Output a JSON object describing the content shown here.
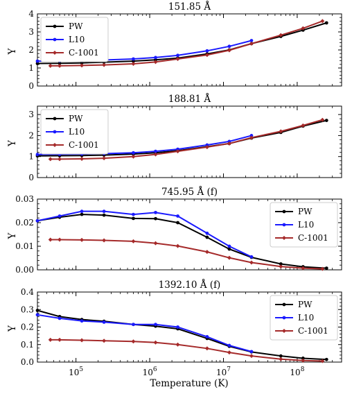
{
  "figure": {
    "xlabel": "Temperature (K)",
    "x_tick_labels": [
      "10^5",
      "10^6",
      "10^7",
      "10^8"
    ],
    "legend_labels": [
      "PW",
      "L10",
      "C-1001"
    ],
    "colors": {
      "PW": "#000000",
      "L10": "#1a1aff",
      "C-1001": "#a52a2a"
    }
  },
  "chart_data": [
    {
      "type": "line",
      "title": "151.85 Å",
      "ylabel": "Y",
      "xscale": "log",
      "xlim": [
        30000,
        400000000
      ],
      "ylim": [
        0,
        4
      ],
      "yticks": [
        0,
        1,
        2,
        3,
        4
      ],
      "ytick_labels": [
        "0",
        "1",
        "2",
        "3",
        "4"
      ],
      "legend": "top-left",
      "series": [
        {
          "name": "PW",
          "x": [
            30000,
            60000,
            120000,
            240000,
            600000,
            1200000,
            2400000,
            6000000,
            12000000,
            24000000,
            60000000,
            120000000,
            250000000
          ],
          "values": [
            1.25,
            1.26,
            1.28,
            1.32,
            1.38,
            1.45,
            1.55,
            1.78,
            2.0,
            2.35,
            2.75,
            3.1,
            3.5
          ]
        },
        {
          "name": "L10",
          "x": [
            30000,
            60000,
            120000,
            240000,
            600000,
            1200000,
            2400000,
            6000000,
            12000000,
            24000000
          ],
          "values": [
            1.38,
            1.39,
            1.41,
            1.44,
            1.5,
            1.58,
            1.7,
            1.95,
            2.2,
            2.52
          ]
        },
        {
          "name": "C-1001",
          "x": [
            45000,
            60000,
            120000,
            240000,
            600000,
            1200000,
            2400000,
            6000000,
            12000000,
            24000000,
            60000000,
            120000000,
            220000000
          ],
          "values": [
            1.12,
            1.12,
            1.14,
            1.17,
            1.23,
            1.33,
            1.5,
            1.72,
            1.98,
            2.35,
            2.82,
            3.2,
            3.6
          ]
        }
      ]
    },
    {
      "type": "line",
      "title": "188.81 Å",
      "ylabel": "Y",
      "xscale": "log",
      "xlim": [
        30000,
        400000000
      ],
      "ylim": [
        0,
        3.4
      ],
      "yticks": [
        0,
        1,
        2,
        3
      ],
      "ytick_labels": [
        "0",
        "1",
        "2",
        "3"
      ],
      "legend": "top-left",
      "series": [
        {
          "name": "PW",
          "x": [
            30000,
            60000,
            120000,
            240000,
            600000,
            1200000,
            2400000,
            6000000,
            12000000,
            24000000,
            60000000,
            120000000,
            250000000
          ],
          "values": [
            1.03,
            1.04,
            1.05,
            1.07,
            1.12,
            1.18,
            1.28,
            1.47,
            1.62,
            1.88,
            2.15,
            2.45,
            2.72
          ]
        },
        {
          "name": "L10",
          "x": [
            30000,
            60000,
            120000,
            240000,
            600000,
            1200000,
            2400000,
            6000000,
            12000000,
            24000000
          ],
          "values": [
            1.1,
            1.11,
            1.12,
            1.14,
            1.18,
            1.25,
            1.35,
            1.55,
            1.72,
            2.0
          ]
        },
        {
          "name": "C-1001",
          "x": [
            45000,
            60000,
            120000,
            240000,
            600000,
            1200000,
            2400000,
            6000000,
            12000000,
            24000000,
            60000000,
            120000000,
            220000000
          ],
          "values": [
            0.88,
            0.88,
            0.89,
            0.92,
            1.0,
            1.1,
            1.25,
            1.45,
            1.62,
            1.9,
            2.2,
            2.48,
            2.75
          ]
        }
      ]
    },
    {
      "type": "line",
      "title": "745.95 Å (f)",
      "ylabel": "Y",
      "xscale": "log",
      "xlim": [
        30000,
        400000000
      ],
      "ylim": [
        0,
        0.03
      ],
      "yticks": [
        0,
        0.01,
        0.02,
        0.03
      ],
      "ytick_labels": [
        "0.00",
        "0.01",
        "0.02",
        "0.03"
      ],
      "legend": "top-right",
      "series": [
        {
          "name": "PW",
          "x": [
            30000,
            60000,
            120000,
            240000,
            600000,
            1200000,
            2400000,
            6000000,
            12000000,
            24000000,
            60000000,
            120000000,
            250000000
          ],
          "values": [
            0.0208,
            0.0223,
            0.0235,
            0.0232,
            0.0218,
            0.0217,
            0.02,
            0.0138,
            0.0088,
            0.0053,
            0.0025,
            0.0013,
            0.0007
          ]
        },
        {
          "name": "L10",
          "x": [
            30000,
            60000,
            120000,
            240000,
            600000,
            1200000,
            2400000,
            6000000,
            12000000,
            24000000
          ],
          "values": [
            0.0208,
            0.0228,
            0.0248,
            0.0248,
            0.0235,
            0.0243,
            0.0228,
            0.0155,
            0.01,
            0.0055
          ]
        },
        {
          "name": "C-1001",
          "x": [
            45000,
            60000,
            120000,
            240000,
            600000,
            1200000,
            2400000,
            6000000,
            12000000,
            24000000,
            60000000,
            120000000,
            220000000
          ],
          "values": [
            0.0128,
            0.0128,
            0.0127,
            0.0125,
            0.0121,
            0.0113,
            0.0101,
            0.0076,
            0.0051,
            0.0031,
            0.0014,
            0.0007,
            0.0004
          ]
        }
      ]
    },
    {
      "type": "line",
      "title": "1392.10 Å (f)",
      "ylabel": "Y",
      "xscale": "log",
      "xlim": [
        30000,
        400000000
      ],
      "ylim": [
        0,
        0.4
      ],
      "yticks": [
        0,
        0.1,
        0.2,
        0.3,
        0.4
      ],
      "ytick_labels": [
        "0.0",
        "0.1",
        "0.2",
        "0.3",
        "0.4"
      ],
      "legend": "top-right",
      "series": [
        {
          "name": "PW",
          "x": [
            30000,
            60000,
            120000,
            240000,
            600000,
            1200000,
            2400000,
            6000000,
            12000000,
            24000000,
            60000000,
            120000000,
            250000000
          ],
          "values": [
            0.295,
            0.26,
            0.243,
            0.233,
            0.215,
            0.205,
            0.19,
            0.135,
            0.09,
            0.058,
            0.035,
            0.022,
            0.015
          ]
        },
        {
          "name": "L10",
          "x": [
            30000,
            60000,
            120000,
            240000,
            600000,
            1200000,
            2400000,
            6000000,
            12000000,
            24000000
          ],
          "values": [
            0.27,
            0.25,
            0.235,
            0.228,
            0.215,
            0.215,
            0.2,
            0.145,
            0.095,
            0.06
          ]
        },
        {
          "name": "C-1001",
          "x": [
            45000,
            60000,
            120000,
            240000,
            600000,
            1200000,
            2400000,
            6000000,
            12000000,
            24000000,
            60000000,
            120000000,
            220000000
          ],
          "values": [
            0.127,
            0.127,
            0.125,
            0.122,
            0.118,
            0.112,
            0.1,
            0.078,
            0.055,
            0.035,
            0.017,
            0.009,
            0.006
          ]
        }
      ]
    }
  ]
}
